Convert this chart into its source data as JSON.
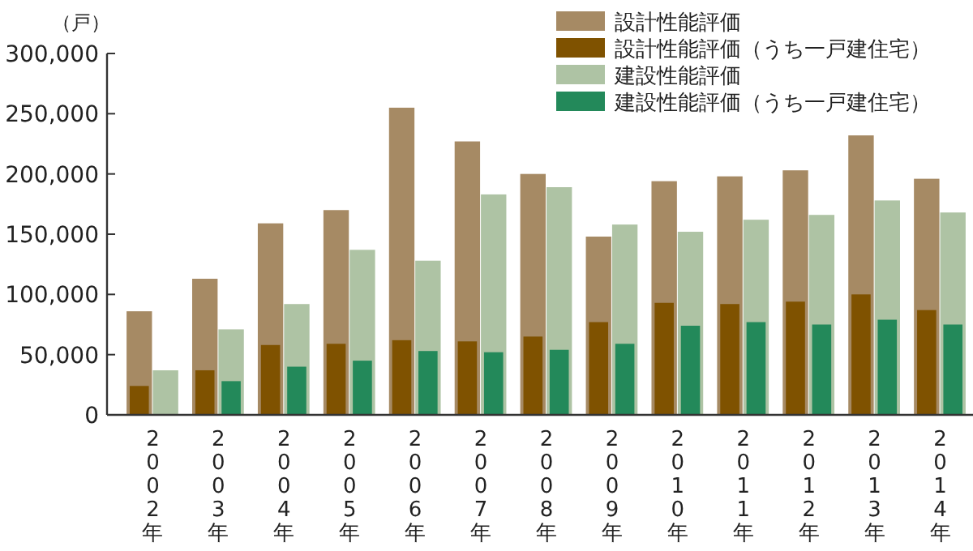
{
  "chart_data": {
    "type": "bar",
    "ylabel": "（戸）",
    "categories": [
      "2002年",
      "2003年",
      "2004年",
      "2005年",
      "2006年",
      "2007年",
      "2008年",
      "2009年",
      "2010年",
      "2011年",
      "2012年",
      "2013年",
      "2014年"
    ],
    "series": [
      {
        "name": "設計性能評価",
        "color": "#a68a64",
        "values": [
          86000,
          113000,
          159000,
          170000,
          255000,
          227000,
          200000,
          148000,
          194000,
          198000,
          203000,
          232000,
          196000
        ]
      },
      {
        "name": "設計性能評価（うち一戸建住宅）",
        "color": "#7f5200",
        "values": [
          24000,
          37000,
          58000,
          59000,
          62000,
          61000,
          65000,
          77000,
          93000,
          92000,
          94000,
          100000,
          87000
        ]
      },
      {
        "name": "建設性能評価",
        "color": "#aec3a4",
        "values": [
          37000,
          71000,
          92000,
          137000,
          128000,
          183000,
          189000,
          158000,
          152000,
          162000,
          166000,
          178000,
          168000
        ]
      },
      {
        "name": "建設性能評価（うち一戸建住宅）",
        "color": "#23895a",
        "values": [
          null,
          28000,
          40000,
          45000,
          53000,
          52000,
          54000,
          59000,
          74000,
          77000,
          75000,
          79000,
          75000
        ]
      }
    ],
    "ylim": [
      0,
      300000
    ],
    "yticks": [
      0,
      {
        "value": 50000,
        "label": "50,000"
      },
      {
        "value": 100000,
        "label": "100,000"
      },
      {
        "value": 150000,
        "label": "150,000"
      },
      {
        "value": 200000,
        "label": "200,000"
      },
      {
        "value": 250000,
        "label": "250,000"
      },
      {
        "value": 300000,
        "label": "300,000"
      }
    ],
    "grid": false,
    "legend": "top right"
  }
}
